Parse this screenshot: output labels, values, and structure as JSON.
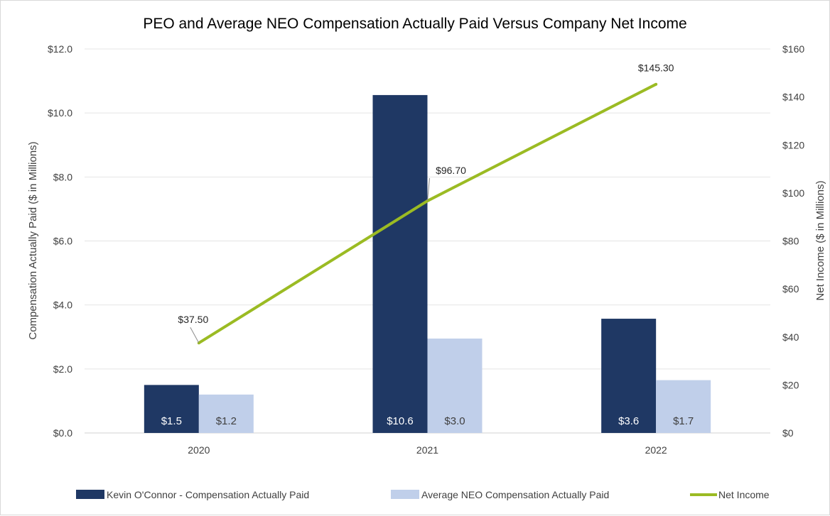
{
  "chart_data": {
    "type": "bar",
    "title": "PEO and Average NEO Compensation Actually Paid Versus Company Net Income",
    "categories": [
      "2020",
      "2021",
      "2022"
    ],
    "ylabel": "Compensation Actually Paid ($ in Millions)",
    "y2label": "Net Income ($ in Millions)",
    "ylim": [
      0,
      12
    ],
    "y2lim": [
      0,
      160
    ],
    "yticks": [
      "$0.0",
      "$2.0",
      "$4.0",
      "$6.0",
      "$8.0",
      "$10.0",
      "$12.0"
    ],
    "y2ticks": [
      "$0",
      "$20",
      "$40",
      "$60",
      "$80",
      "$100",
      "$120",
      "$140",
      "$160"
    ],
    "grid": true,
    "legend_position": "bottom",
    "series": [
      {
        "name": "Kevin O'Connor - Compensation Actually Paid",
        "kind": "bar",
        "axis": "left",
        "color": "#1f3864",
        "label_color": "#ffffff",
        "values": [
          1.5,
          10.56,
          3.57
        ],
        "labels": [
          "$1.5",
          "$10.6",
          "$3.6"
        ]
      },
      {
        "name": "Average NEO Compensation Actually Paid",
        "kind": "bar",
        "axis": "left",
        "color": "#c0cfea",
        "label_color": "#404040",
        "values": [
          1.2,
          2.95,
          1.65
        ],
        "labels": [
          "$1.2",
          "$3.0",
          "$1.7"
        ]
      },
      {
        "name": "Net Income",
        "kind": "line",
        "axis": "right",
        "color": "#9bbb23",
        "values": [
          37.5,
          96.7,
          145.3
        ],
        "labels": [
          "$37.50",
          "$96.70",
          "$145.30"
        ]
      }
    ]
  }
}
